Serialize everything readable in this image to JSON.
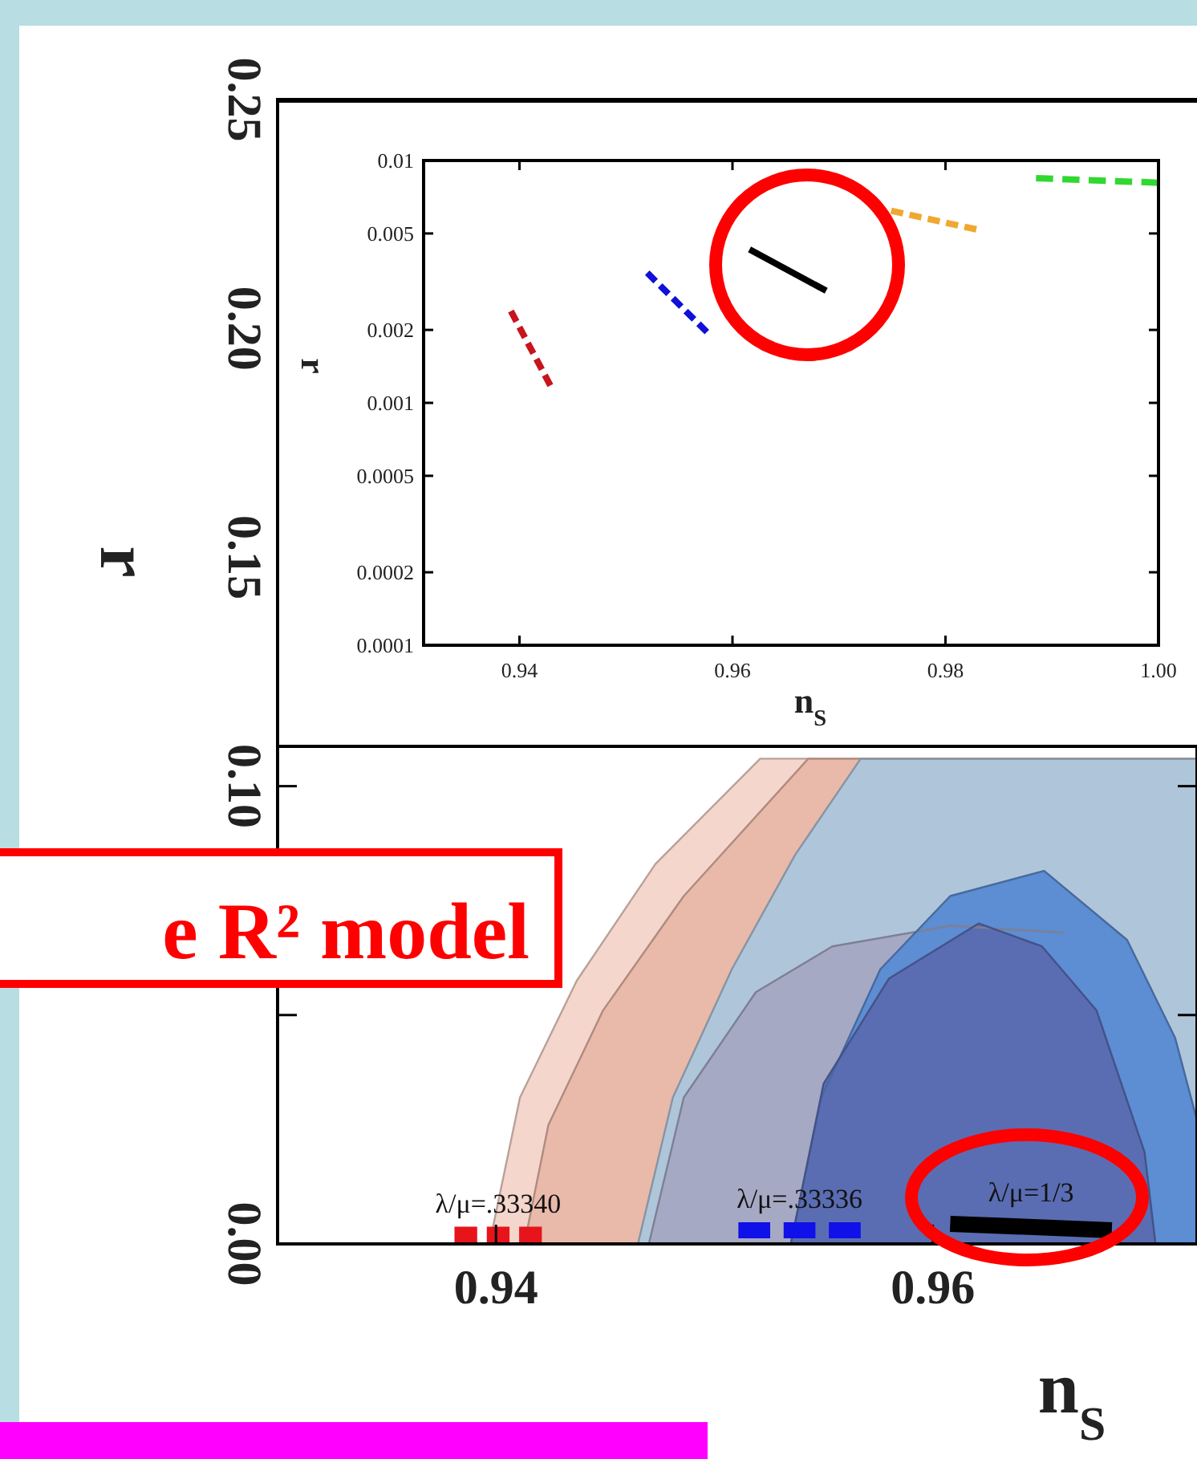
{
  "chart_data": [
    {
      "type": "area",
      "xlabel": "n$_{S}$",
      "ylabel": "r",
      "xlim": [
        0.93,
        0.9721
      ],
      "ylim": [
        0,
        0.25
      ],
      "xticks": [
        0.94,
        0.96
      ],
      "yticks": [
        {
          "value": 0,
          "label": "0.00"
        },
        {
          "value": 0.05,
          "label": null
        },
        {
          "value": 0.1,
          "label": "0.10"
        },
        {
          "value": 0.15,
          "label": "0.15"
        },
        {
          "value": 0.2,
          "label": "0.20"
        },
        {
          "value": 0.25,
          "label": "0.25"
        }
      ],
      "annotations": [
        "e R² model"
      ],
      "series": [
        {
          "color": "#f5d6cc",
          "x": [
            0.9397,
            0.9411,
            0.9437,
            0.9473,
            0.9521,
            0.9721
          ],
          "values": [
            0,
            0.032,
            0.0575,
            0.083,
            0.106,
            0.106
          ]
        },
        {
          "color": "#e9b9a9",
          "x": [
            0.9413,
            0.9424,
            0.9449,
            0.9486,
            0.9543,
            0.9721
          ],
          "values": [
            0,
            0.026,
            0.051,
            0.076,
            0.106,
            0.106
          ]
        },
        {
          "color": "#afc6da",
          "x": [
            0.9465,
            0.9481,
            0.9508,
            0.9537,
            0.9567,
            0.9721
          ],
          "values": [
            0,
            0.032,
            0.06,
            0.085,
            0.106,
            0.106
          ]
        },
        {
          "color": "#a6a9c4",
          "x": [
            0.947,
            0.9486,
            0.9519,
            0.9554,
            0.9608,
            0.966
          ],
          "values": [
            0,
            0.032,
            0.055,
            0.065,
            0.0695,
            0.068
          ]
        },
        {
          "color": "#5d8dd2",
          "x": [
            0.9535,
            0.9549,
            0.9576,
            0.9608,
            0.9651,
            0.9689,
            0.9711,
            0.9721
          ],
          "values": [
            0,
            0.032,
            0.06,
            0.076,
            0.0815,
            0.0664,
            0.045,
            0.027
          ]
        },
        {
          "color": "#5a6db3",
          "x": [
            0.9535,
            0.955,
            0.958,
            0.9621,
            0.965,
            0.9675,
            0.9697,
            0.9702
          ],
          "values": [
            0,
            0.035,
            0.058,
            0.07,
            0.065,
            0.051,
            0.02,
            0
          ]
        },
        {
          "type": "line",
          "name": "λ/μ=.33340",
          "color": "#e8141c",
          "line_style": "dashed",
          "x": [
            0.9381,
            0.9421
          ],
          "values": [
            0.002,
            0.002
          ]
        },
        {
          "type": "line",
          "name": "λ/μ=.33336",
          "color": "#1010e8",
          "line_style": "dashed",
          "x": [
            0.9511,
            0.9567
          ],
          "values": [
            0.003,
            0.003
          ]
        },
        {
          "type": "line",
          "name": "λ/μ=1/3",
          "color": "#000000",
          "line_style": "solid",
          "x": [
            0.9608,
            0.9682
          ],
          "values": [
            0.0044,
            0.003
          ]
        }
      ]
    },
    {
      "type": "line",
      "log": "y",
      "xlabel": "n$_{S}$",
      "ylabel": "r",
      "xlim": [
        0.931,
        1.0
      ],
      "ylim": [
        0.0001,
        0.01
      ],
      "xticks": [
        0.94,
        0.96,
        0.98,
        {
          "value": 1,
          "label": "1.00"
        }
      ],
      "yticks": [
        0.0001,
        0.0002,
        0.0005,
        0.001,
        0.002,
        0.005,
        0.01
      ],
      "series": [
        {
          "color": "#c8141c",
          "line_style": "dashed",
          "x": [
            0.9392,
            0.9429
          ],
          "values": [
            0.00239,
            0.00118
          ]
        },
        {
          "color": "#1010d8",
          "line_style": "dashed",
          "x": [
            0.952,
            0.9576
          ],
          "values": [
            0.00344,
            0.00196
          ]
        },
        {
          "color": "#000000",
          "line_style": "solid",
          "x": [
            0.9616,
            0.9688
          ],
          "values": [
            0.0043,
            0.0029
          ]
        },
        {
          "color": "#f0a830",
          "line_style": "dashed",
          "x": [
            0.9749,
            0.9829
          ],
          "values": [
            0.0062,
            0.0052
          ]
        },
        {
          "color": "#30d830",
          "line_style": "dashed",
          "x": [
            0.9885,
            1.0
          ],
          "values": [
            0.00845,
            0.0081
          ]
        }
      ]
    }
  ]
}
